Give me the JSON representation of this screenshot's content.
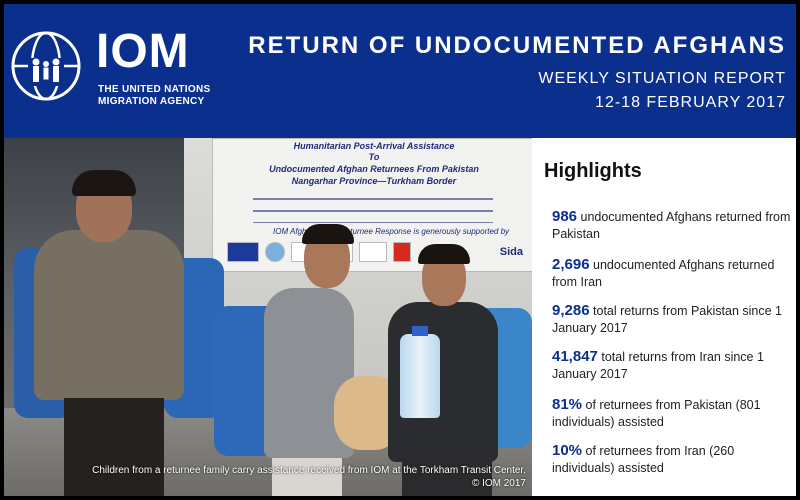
{
  "header": {
    "org_name": "IOM",
    "org_subtitle_line1": "THE UNITED NATIONS",
    "org_subtitle_line2": "MIGRATION AGENCY",
    "title": "RETURN OF UNDOCUMENTED AFGHANS",
    "subtitle": "WEEKLY SITUATION REPORT",
    "date_range": "12-18 FEBRUARY 2017"
  },
  "photo": {
    "banner_line1": "Humanitarian Post-Arrival Assistance",
    "banner_line2": "To",
    "banner_line3": "Undocumented Afghan Returnees From Pakistan",
    "banner_line4": "Nangarhar Province—Turkham Border",
    "banner_support": "IOM Afghanistan's Returnee Response is generously supported by",
    "banner_logo_sida": "Sida",
    "caption": "Children from a returnee family carry assistance received from IOM at the Torkham Transit Center.",
    "credit": "© IOM 2017"
  },
  "highlights": {
    "heading": "Highlights",
    "items": [
      {
        "number": "986",
        "text": " undocumented Afghans returned from Pakistan"
      },
      {
        "number": "2,696",
        "text": " undocumented Afghans returned from Iran"
      },
      {
        "number": "9,286",
        "text": " total returns from Pakistan since 1 January 2017"
      },
      {
        "number": "41,847",
        "text": " total returns from Iran since 1 January 2017"
      },
      {
        "number": "81%",
        "text": " of returnees from Pakistan (801 individuals) assisted"
      },
      {
        "number": "10%",
        "text": " of returnees from Iran (260 individuals) assisted"
      }
    ]
  },
  "colors": {
    "header_bg": "#0a2f8c",
    "accent_number": "#0a2f8c"
  }
}
